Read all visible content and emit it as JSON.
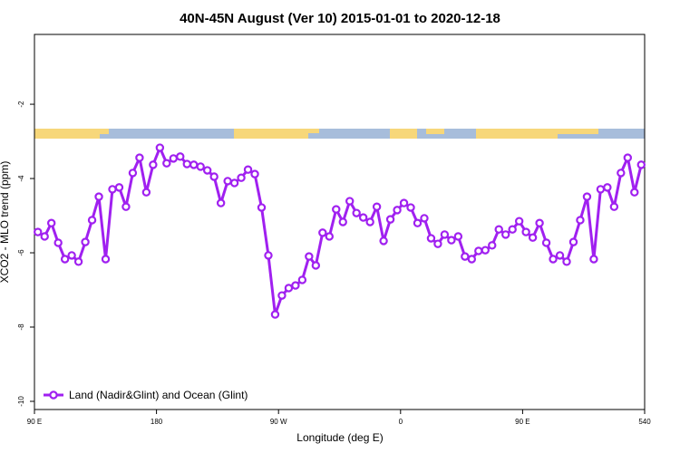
{
  "chart_data": {
    "type": "line",
    "title": "40N-45N August (Ver 10)   2015-01-01 to 2020-12-18",
    "x_label": "Longitude (deg E)",
    "y_label": "XCO2 - MLO trend (ppm)",
    "x": [
      92.5,
      97.5,
      102.5,
      107.5,
      112.5,
      117.5,
      122.5,
      127.5,
      132.5,
      137.5,
      142.5,
      147.5,
      152.5,
      157.5,
      162.5,
      167.5,
      172.5,
      177.5,
      182.5,
      187.5,
      192.5,
      197.5,
      202.5,
      207.5,
      212.5,
      217.5,
      222.5,
      227.5,
      232.5,
      237.5,
      242.5,
      247.5,
      252.5,
      257.5,
      262.5,
      267.5,
      272.5,
      277.5,
      282.5,
      287.5,
      292.5,
      297.5,
      302.5,
      307.5,
      312.5,
      317.5,
      322.5,
      327.5,
      332.5,
      337.5,
      342.5,
      347.5,
      352.5,
      357.5,
      362.5,
      367.5,
      372.5,
      377.5,
      382.5,
      387.5,
      392.5,
      397.5,
      402.5,
      407.5,
      412.5,
      417.5,
      422.5,
      427.5,
      432.5,
      437.5,
      442.5,
      447.5,
      452.5,
      457.5,
      462.5,
      467.5,
      472.5,
      477.5,
      482.5,
      487.5,
      492.5,
      497.5,
      502.5,
      507.5,
      512.5,
      517.5,
      522.5,
      527.5,
      532.5,
      537.5
    ],
    "series": [
      {
        "name": "Land (Nadir&Glint) and Ocean (Glint)",
        "color": "#a020f0",
        "values": [
          -5.44,
          -5.56,
          -5.2,
          -5.73,
          -6.17,
          -6.07,
          -6.24,
          -5.71,
          -5.12,
          -4.49,
          -6.17,
          -4.29,
          -4.24,
          -4.76,
          -3.85,
          -3.44,
          -4.37,
          -3.63,
          -3.17,
          -3.59,
          -3.46,
          -3.41,
          -3.61,
          -3.63,
          -3.68,
          -3.78,
          -3.95,
          -4.66,
          -4.07,
          -4.12,
          -3.98,
          -3.76,
          -3.88,
          -4.78,
          -6.07,
          -7.66,
          -7.15,
          -6.95,
          -6.88,
          -6.73,
          -6.1,
          -6.34,
          -5.46,
          -5.56,
          -4.83,
          -5.17,
          -4.61,
          -4.93,
          -5.05,
          -5.17,
          -4.76,
          -5.68,
          -5.1,
          -4.85,
          -4.66,
          -4.78,
          -5.2,
          -5.07,
          -5.61,
          -5.76,
          -5.51,
          -5.66,
          -5.56,
          -6.1,
          -6.17,
          -5.95,
          -5.93,
          -5.8,
          -5.37,
          -5.51,
          -5.37,
          -5.15,
          -5.44,
          -5.59,
          -5.2,
          -5.73,
          -6.17,
          -6.07,
          -6.24,
          -5.71,
          -5.12,
          -4.49,
          -6.17,
          -4.29,
          -4.24,
          -4.76,
          -3.85,
          -3.44,
          -4.37,
          -3.63
        ]
      }
    ],
    "xlim": [
      90,
      540
    ],
    "xticks": [
      {
        "value": 90,
        "label": "90 E"
      },
      180,
      {
        "value": 270,
        "label": "90 W"
      },
      {
        "value": 360,
        "label": "0"
      },
      {
        "value": 450,
        "label": "90 E"
      },
      540
    ],
    "ylim": [
      -10.22,
      -0.12
    ],
    "yticks": [
      -2,
      -4,
      -6,
      -8,
      -10
    ],
    "legend": "bottom-left"
  }
}
